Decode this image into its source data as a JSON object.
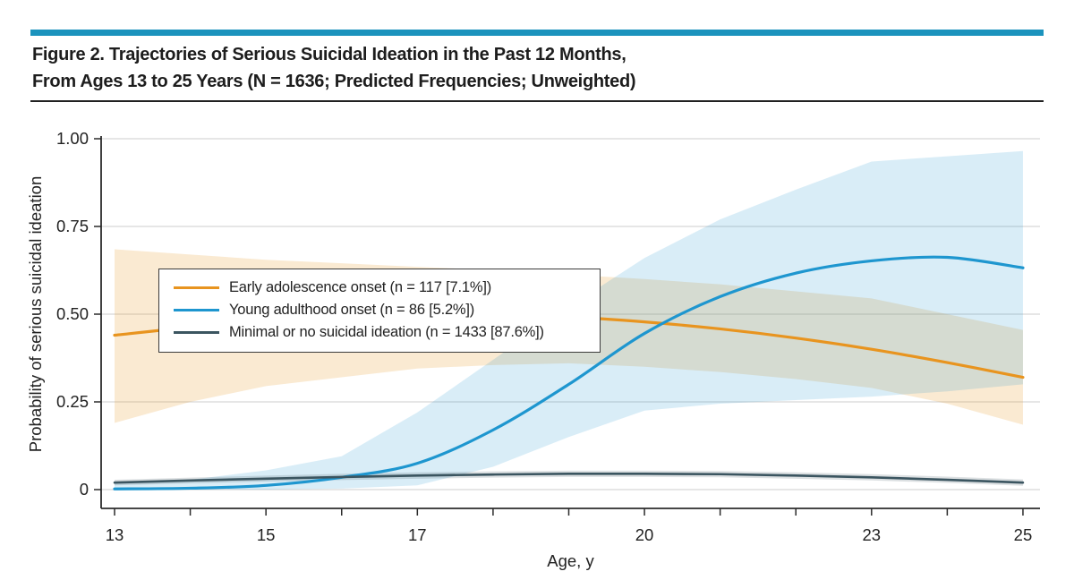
{
  "figure": {
    "title_line1": "Figure 2. Trajectories of Serious Suicidal Ideation in the Past 12 Months,",
    "title_line2": "From Ages 13 to 25 Years (N = 1636; Predicted Frequencies; Unweighted)"
  },
  "colors": {
    "header_bar": "#1B93BD",
    "early": "#E8941F",
    "young": "#1E96CF",
    "minimal": "#3B5560",
    "early_band": "rgba(232,148,31,0.20)",
    "young_band": "rgba(30,150,207,0.17)",
    "minimal_band": "rgba(59,85,96,0.18)",
    "grid": "#D8D8D8",
    "axis": "#2B2B2B"
  },
  "chart_data": {
    "type": "line",
    "title": "",
    "xlabel": "Age, y",
    "ylabel": "Probability of serious suicidal ideation",
    "x": [
      13,
      14,
      15,
      16,
      17,
      18,
      19,
      20,
      21,
      22,
      23,
      24,
      25
    ],
    "x_major_ticks": [
      13,
      15,
      17,
      20,
      23,
      25
    ],
    "xlim": [
      13,
      25
    ],
    "ylim": [
      0,
      1.0
    ],
    "grid": "horizontal",
    "legend_position": "top-left",
    "y_ticks": [
      {
        "value": 1.0,
        "label": "1.00"
      },
      {
        "value": 0.75,
        "label": "0.75"
      },
      {
        "value": 0.5,
        "label": "0.50"
      },
      {
        "value": 0.25,
        "label": "0.25"
      },
      {
        "value": 0,
        "label": "0"
      }
    ],
    "series": [
      {
        "key": "early",
        "name": "Early adolescence onset (n = 117 [7.1%])",
        "values": [
          0.44,
          0.462,
          0.478,
          0.488,
          0.494,
          0.497,
          0.492,
          0.478,
          0.458,
          0.432,
          0.4,
          0.362,
          0.32
        ],
        "ci_upper": [
          0.685,
          0.67,
          0.655,
          0.645,
          0.635,
          0.625,
          0.613,
          0.6,
          0.585,
          0.565,
          0.545,
          0.5,
          0.455
        ],
        "ci_lower": [
          0.19,
          0.25,
          0.295,
          0.32,
          0.345,
          0.355,
          0.36,
          0.35,
          0.335,
          0.315,
          0.29,
          0.245,
          0.185
        ]
      },
      {
        "key": "young",
        "name": "Young adulthood onset (n = 86 [5.2%])",
        "values": [
          0.002,
          0.004,
          0.012,
          0.035,
          0.075,
          0.17,
          0.3,
          0.445,
          0.55,
          0.617,
          0.652,
          0.662,
          0.632
        ],
        "ci_upper": [
          0.02,
          0.028,
          0.055,
          0.095,
          0.22,
          0.37,
          0.52,
          0.66,
          0.77,
          0.855,
          0.935,
          0.95,
          0.965
        ],
        "ci_lower": [
          0.0,
          0.0,
          0.0,
          0.003,
          0.012,
          0.065,
          0.15,
          0.225,
          0.245,
          0.255,
          0.265,
          0.28,
          0.3
        ]
      },
      {
        "key": "minimal",
        "name": "Minimal or no suicidal ideation (n = 1433 [87.6%])",
        "values": [
          0.02,
          0.026,
          0.031,
          0.036,
          0.04,
          0.043,
          0.045,
          0.045,
          0.044,
          0.04,
          0.035,
          0.028,
          0.02
        ],
        "ci_upper": [
          0.028,
          0.034,
          0.04,
          0.045,
          0.049,
          0.052,
          0.054,
          0.054,
          0.053,
          0.049,
          0.044,
          0.037,
          0.029
        ],
        "ci_lower": [
          0.012,
          0.018,
          0.023,
          0.027,
          0.031,
          0.034,
          0.036,
          0.036,
          0.035,
          0.031,
          0.026,
          0.019,
          0.011
        ]
      }
    ]
  }
}
